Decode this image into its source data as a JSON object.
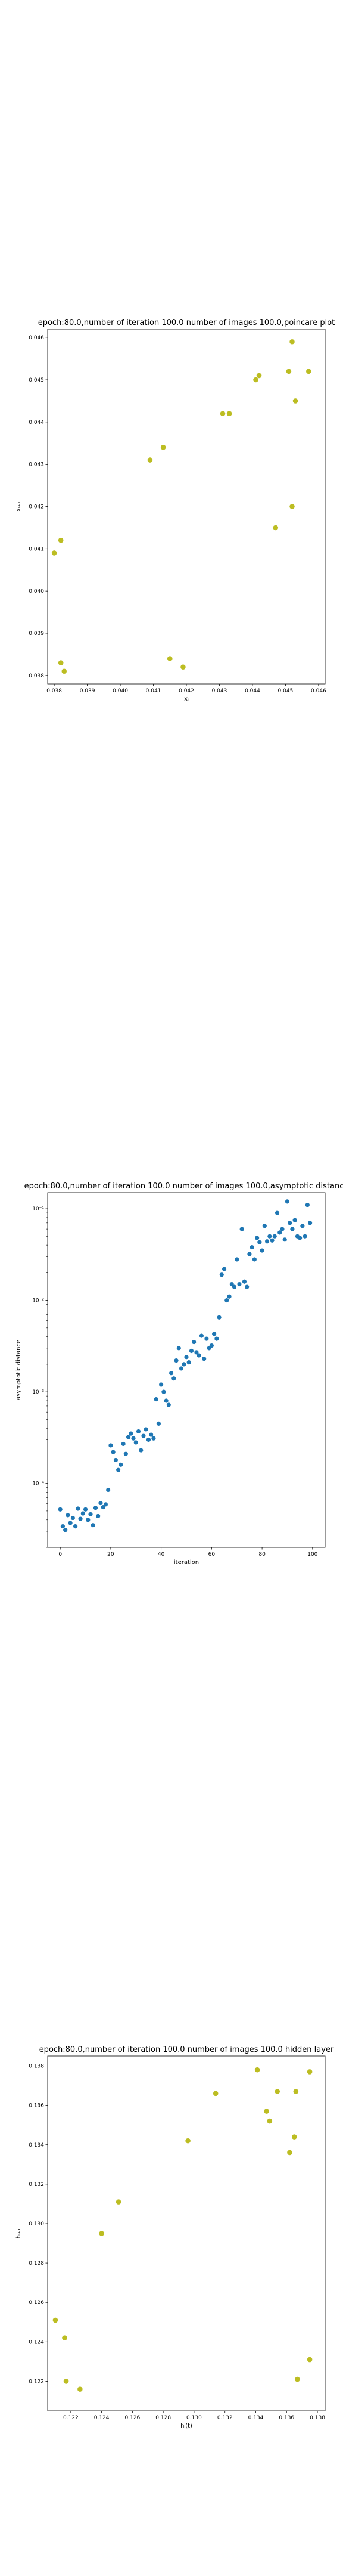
{
  "chart_data": [
    {
      "type": "scatter",
      "title": "epoch:80.0,number of iteration 100.0 number of images 100.0,poincare plot",
      "xlabel": "xᵢ",
      "ylabel": "xᵢ₊₁",
      "xlim": [
        0.0378,
        0.0462
      ],
      "ylim": [
        0.0378,
        0.0462
      ],
      "xticks": [
        "0.038",
        "0.039",
        "0.040",
        "0.041",
        "0.042",
        "0.043",
        "0.044",
        "0.045",
        "0.046"
      ],
      "yticks": [
        "0.038",
        "0.039",
        "0.040",
        "0.041",
        "0.042",
        "0.043",
        "0.044",
        "0.045",
        "0.046"
      ],
      "color": "#bcbd22",
      "points": [
        {
          "x": 0.038,
          "y": 0.0409
        },
        {
          "x": 0.0382,
          "y": 0.0383
        },
        {
          "x": 0.0382,
          "y": 0.0412
        },
        {
          "x": 0.0383,
          "y": 0.0381
        },
        {
          "x": 0.0409,
          "y": 0.0431
        },
        {
          "x": 0.0413,
          "y": 0.0434
        },
        {
          "x": 0.0415,
          "y": 0.0384
        },
        {
          "x": 0.0419,
          "y": 0.0382
        },
        {
          "x": 0.0431,
          "y": 0.0442
        },
        {
          "x": 0.0433,
          "y": 0.0442
        },
        {
          "x": 0.0441,
          "y": 0.045
        },
        {
          "x": 0.0442,
          "y": 0.0451
        },
        {
          "x": 0.0447,
          "y": 0.0415
        },
        {
          "x": 0.0451,
          "y": 0.0452
        },
        {
          "x": 0.0452,
          "y": 0.0459
        },
        {
          "x": 0.0452,
          "y": 0.042
        },
        {
          "x": 0.0453,
          "y": 0.0445
        },
        {
          "x": 0.0457,
          "y": 0.0452
        }
      ]
    },
    {
      "type": "scatter",
      "title": "epoch:80.0,number of iteration 100.0  number of images 100.0,asymptotic distance",
      "xlabel": "iteration",
      "ylabel": "asymptotic distance",
      "yscale": "log",
      "xlim": [
        -5,
        105
      ],
      "ylim": [
        2e-05,
        0.15
      ],
      "xticks": [
        "0",
        "20",
        "40",
        "60",
        "80",
        "100"
      ],
      "yticks": [
        "10⁻⁴",
        "10⁻³",
        "10⁻²",
        "10⁻¹"
      ],
      "color": "#1f77b4",
      "x": [
        0,
        1,
        2,
        3,
        4,
        5,
        6,
        7,
        8,
        9,
        10,
        11,
        12,
        13,
        14,
        15,
        16,
        17,
        18,
        19,
        20,
        21,
        22,
        23,
        24,
        25,
        26,
        27,
        28,
        29,
        30,
        31,
        32,
        33,
        34,
        35,
        36,
        37,
        38,
        39,
        40,
        41,
        42,
        43,
        44,
        45,
        46,
        47,
        48,
        49,
        50,
        51,
        52,
        53,
        54,
        55,
        56,
        57,
        58,
        59,
        60,
        61,
        62,
        63,
        64,
        65,
        66,
        67,
        68,
        69,
        70,
        71,
        72,
        73,
        74,
        75,
        76,
        77,
        78,
        79,
        80,
        81,
        82,
        83,
        84,
        85,
        86,
        87,
        88,
        89,
        90,
        91,
        92,
        93,
        94,
        95,
        96,
        97,
        98,
        99
      ],
      "y": [
        5.2e-05,
        3.4e-05,
        3.1e-05,
        4.5e-05,
        3.7e-05,
        4.2e-05,
        3.4e-05,
        5.3e-05,
        4.1e-05,
        4.7e-05,
        5.2e-05,
        4e-05,
        4.6e-05,
        3.5e-05,
        5.4e-05,
        4.4e-05,
        6.1e-05,
        5.5e-05,
        5.9e-05,
        8.5e-05,
        0.00026,
        0.00022,
        0.00018,
        0.00014,
        0.00016,
        0.00027,
        0.00021,
        0.00032,
        0.00035,
        0.00031,
        0.00028,
        0.00037,
        0.00023,
        0.00033,
        0.00039,
        0.0003,
        0.00034,
        0.00031,
        0.00083,
        0.00045,
        0.0012,
        0.001,
        0.0008,
        0.00072,
        0.0016,
        0.0014,
        0.0022,
        0.003,
        0.0018,
        0.002,
        0.0024,
        0.0021,
        0.0028,
        0.0035,
        0.0027,
        0.0025,
        0.0041,
        0.0023,
        0.0038,
        0.003,
        0.0032,
        0.0043,
        0.0038,
        0.0065,
        0.019,
        0.022,
        0.01,
        0.011,
        0.015,
        0.014,
        0.028,
        0.015,
        0.06,
        0.016,
        0.014,
        0.032,
        0.038,
        0.028,
        0.048,
        0.043,
        0.035,
        0.065,
        0.044,
        0.05,
        0.045,
        0.05,
        0.09,
        0.055,
        0.06,
        0.046,
        0.12,
        0.07,
        0.06,
        0.075,
        0.05,
        0.048,
        0.065,
        0.05,
        0.11,
        0.07
      ]
    },
    {
      "type": "scatter",
      "title": "epoch:80.0,number of iteration 100.0  number of images 100.0 hidden layer",
      "xlabel": "hᵢ(t)",
      "ylabel": "hᵢ₊₁",
      "xlim": [
        0.1205,
        0.1385
      ],
      "ylim": [
        0.1205,
        0.1385
      ],
      "xticks": [
        "0.122",
        "0.124",
        "0.126",
        "0.128",
        "0.130",
        "0.132",
        "0.134",
        "0.136",
        "0.138"
      ],
      "yticks": [
        "0.122",
        "0.124",
        "0.126",
        "0.128",
        "0.130",
        "0.132",
        "0.134",
        "0.136",
        "0.138"
      ],
      "color": "#bcbd22",
      "points": [
        {
          "x": 0.121,
          "y": 0.1251
        },
        {
          "x": 0.1216,
          "y": 0.1242
        },
        {
          "x": 0.1217,
          "y": 0.122
        },
        {
          "x": 0.1226,
          "y": 0.1216
        },
        {
          "x": 0.124,
          "y": 0.1295
        },
        {
          "x": 0.1251,
          "y": 0.1311
        },
        {
          "x": 0.1296,
          "y": 0.1342
        },
        {
          "x": 0.1314,
          "y": 0.1366
        },
        {
          "x": 0.1341,
          "y": 0.1378
        },
        {
          "x": 0.1347,
          "y": 0.1357
        },
        {
          "x": 0.1349,
          "y": 0.1352
        },
        {
          "x": 0.1354,
          "y": 0.1367
        },
        {
          "x": 0.1362,
          "y": 0.1336
        },
        {
          "x": 0.1365,
          "y": 0.1344
        },
        {
          "x": 0.1366,
          "y": 0.1367
        },
        {
          "x": 0.1367,
          "y": 0.1221
        },
        {
          "x": 0.1375,
          "y": 0.1377
        },
        {
          "x": 0.1375,
          "y": 0.1231
        }
      ]
    }
  ]
}
